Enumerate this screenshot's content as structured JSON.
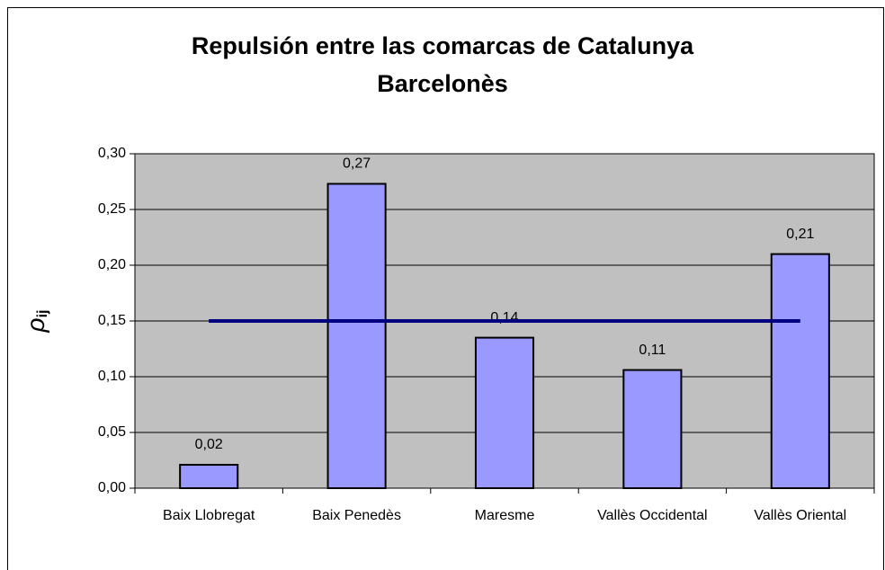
{
  "chart_data": {
    "type": "bar",
    "title": "Repulsión entre las comarcas de Catalunya",
    "subtitle": "Barcelonès",
    "ylabel": {
      "symbol": "ρ",
      "subscript": "ij"
    },
    "categories": [
      "Baix Llobregat",
      "Baix Penedès",
      "Maresme",
      "Vallès Occidental",
      "Vallès Oriental"
    ],
    "series": [
      {
        "type": "bar",
        "color": "#9999ff",
        "values": [
          0.021,
          0.273,
          0.135,
          0.106,
          0.21
        ],
        "value_labels": [
          "0,02",
          "0,27",
          "0,14",
          "0,11",
          "0,21"
        ]
      },
      {
        "type": "line",
        "color": "#000080",
        "values": [
          0.15,
          0.15,
          0.15,
          0.15,
          0.15
        ]
      }
    ],
    "ylim": [
      0,
      0.3
    ],
    "yticks": [
      {
        "value": 0,
        "label": "0,00"
      },
      {
        "value": 0.05,
        "label": "0,05"
      },
      {
        "value": 0.1,
        "label": "0,10"
      },
      {
        "value": 0.15,
        "label": "0,15"
      },
      {
        "value": 0.2,
        "label": "0,20"
      },
      {
        "value": 0.25,
        "label": "0,25"
      },
      {
        "value": 0.3,
        "label": "0,30"
      }
    ],
    "grid": true,
    "plot_background": "#c0c0c0"
  }
}
